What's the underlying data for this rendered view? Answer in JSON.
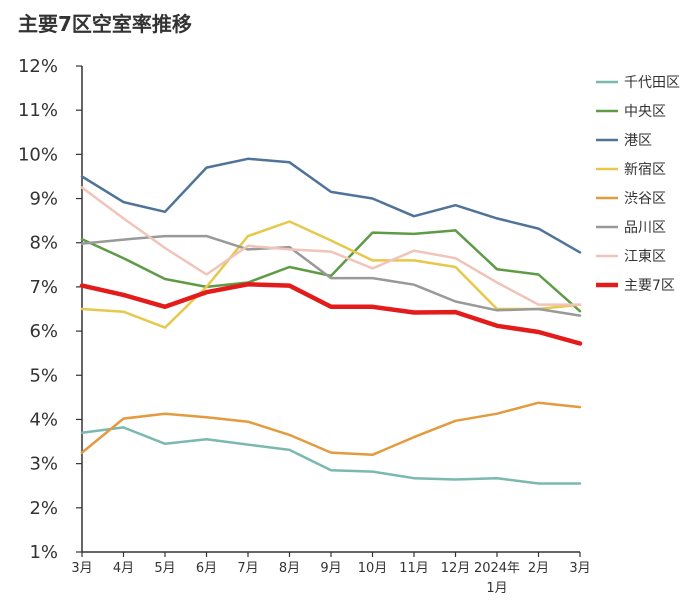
{
  "chart_data": {
    "type": "line",
    "title": "主要7区空室率推移",
    "categories": [
      "3月",
      "4月",
      "5月",
      "6月",
      "7月",
      "8月",
      "9月",
      "10月",
      "11月",
      "12月",
      "2024年1月",
      "2月",
      "3月"
    ],
    "x_labels": [
      {
        "line1": "3月",
        "line2": ""
      },
      {
        "line1": "4月",
        "line2": ""
      },
      {
        "line1": "5月",
        "line2": ""
      },
      {
        "line1": "6月",
        "line2": ""
      },
      {
        "line1": "7月",
        "line2": ""
      },
      {
        "line1": "8月",
        "line2": ""
      },
      {
        "line1": "9月",
        "line2": ""
      },
      {
        "line1": "10月",
        "line2": ""
      },
      {
        "line1": "11月",
        "line2": ""
      },
      {
        "line1": "12月",
        "line2": ""
      },
      {
        "line1": "2024年",
        "line2": "1月"
      },
      {
        "line1": "2月",
        "line2": ""
      },
      {
        "line1": "3月",
        "line2": ""
      }
    ],
    "ylim": [
      1,
      12
    ],
    "yticks": [
      1,
      2,
      3,
      4,
      5,
      6,
      7,
      8,
      9,
      10,
      11,
      12
    ],
    "ytick_labels": [
      "1%",
      "2%",
      "3%",
      "4%",
      "5%",
      "6%",
      "7%",
      "8%",
      "9%",
      "10%",
      "11%",
      "12%"
    ],
    "xlabel": "",
    "ylabel": "",
    "legend_position": "right",
    "series": [
      {
        "name": "千代田区",
        "color": "#7ab8b0",
        "width": "normal",
        "values": [
          3.7,
          3.82,
          3.45,
          3.55,
          3.43,
          3.31,
          2.85,
          2.82,
          2.67,
          2.64,
          2.67,
          2.55,
          2.55
        ]
      },
      {
        "name": "中央区",
        "color": "#5e9b45",
        "width": "normal",
        "values": [
          8.08,
          7.65,
          7.18,
          7.0,
          7.1,
          7.45,
          7.25,
          8.23,
          8.2,
          8.28,
          7.4,
          7.28,
          6.45
        ]
      },
      {
        "name": "港区",
        "color": "#4f7399",
        "width": "normal",
        "values": [
          9.5,
          8.92,
          8.7,
          9.7,
          9.9,
          9.82,
          9.15,
          9.0,
          8.6,
          8.85,
          8.55,
          8.32,
          7.78
        ]
      },
      {
        "name": "新宿区",
        "color": "#e6c84b",
        "width": "normal",
        "values": [
          6.5,
          6.44,
          6.08,
          7.0,
          8.15,
          8.48,
          8.05,
          7.6,
          7.6,
          7.45,
          6.5,
          6.5,
          6.6
        ]
      },
      {
        "name": "渋谷区",
        "color": "#e49a3f",
        "width": "normal",
        "values": [
          3.25,
          4.02,
          4.13,
          4.05,
          3.95,
          3.65,
          3.25,
          3.2,
          3.6,
          3.97,
          4.13,
          4.38,
          4.28
        ]
      },
      {
        "name": "品川区",
        "color": "#999999",
        "width": "normal",
        "values": [
          7.98,
          8.07,
          8.15,
          8.15,
          7.85,
          7.9,
          7.2,
          7.2,
          7.05,
          6.67,
          6.47,
          6.5,
          6.35
        ]
      },
      {
        "name": "江東区",
        "color": "#f0c4b8",
        "width": "normal",
        "values": [
          9.25,
          8.55,
          7.88,
          7.28,
          7.93,
          7.85,
          7.8,
          7.42,
          7.82,
          7.65,
          7.1,
          6.6,
          6.6
        ]
      },
      {
        "name": "主要7区",
        "color": "#e41b1b",
        "width": "bold",
        "values": [
          7.03,
          6.82,
          6.55,
          6.88,
          7.06,
          7.03,
          6.55,
          6.55,
          6.42,
          6.43,
          6.12,
          5.98,
          5.72
        ]
      }
    ]
  }
}
